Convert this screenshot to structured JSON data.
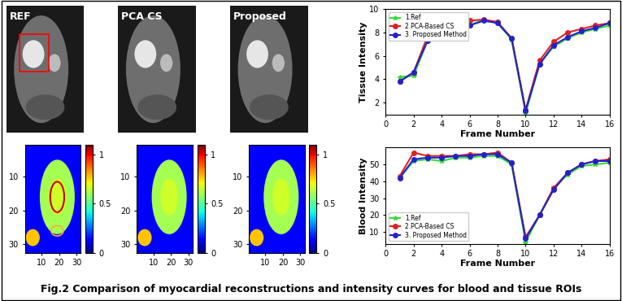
{
  "images": [
    {
      "label": "REF"
    },
    {
      "label": "PCA CS"
    },
    {
      "label": "Proposed"
    }
  ],
  "maps": {
    "xlim": [
      0.5,
      32.5
    ],
    "ylim": [
      32.5,
      0.5
    ],
    "xticks": [
      10,
      20,
      30
    ],
    "yticks": [
      10,
      20,
      30
    ],
    "colorbar_range": [
      0,
      1.1
    ],
    "colorbar_ticks": [
      0,
      0.5,
      1
    ]
  },
  "chart_data": [
    {
      "type": "line",
      "x_label": "Frame Number",
      "y_label": "Tissue Intensity",
      "xlim": [
        0,
        16
      ],
      "xticks": [
        0,
        2,
        4,
        6,
        8,
        10,
        12,
        14,
        16
      ],
      "ylim": [
        1,
        10
      ],
      "yticks": [
        2,
        4,
        6,
        8,
        10
      ],
      "x": [
        1,
        2,
        3,
        4,
        5,
        6,
        7,
        8,
        9,
        10,
        11,
        12,
        13,
        14,
        15,
        16
      ],
      "legend": "upper left",
      "series": [
        {
          "name": "1.Ref",
          "color": "#33dd33",
          "marker": "star",
          "values": [
            4.2,
            4.3,
            7.3,
            7.8,
            8.3,
            8.6,
            9.1,
            8.8,
            7.4,
            1.1,
            5.3,
            6.8,
            7.5,
            8.0,
            8.3,
            8.6
          ]
        },
        {
          "name": "2.PCA-Based CS",
          "color": "#dd2222",
          "marker": "dot",
          "values": [
            3.8,
            4.6,
            7.7,
            8.3,
            8.8,
            9.0,
            9.1,
            8.9,
            7.5,
            1.4,
            5.6,
            7.2,
            8.0,
            8.3,
            8.6,
            8.8
          ]
        },
        {
          "name": "3. Proposed Method",
          "color": "#2222cc",
          "marker": "dot",
          "values": [
            3.8,
            4.6,
            7.3,
            7.8,
            8.2,
            8.6,
            9.0,
            8.8,
            7.5,
            1.3,
            5.3,
            6.9,
            7.6,
            8.1,
            8.4,
            8.8
          ]
        }
      ]
    },
    {
      "type": "line",
      "x_label": "Frame Number",
      "y_label": "Blood Intensity",
      "xlim": [
        0,
        16
      ],
      "xticks": [
        0,
        2,
        4,
        6,
        8,
        10,
        12,
        14,
        16
      ],
      "ylim": [
        3,
        60
      ],
      "yticks": [
        10,
        20,
        30,
        40,
        50
      ],
      "x": [
        1,
        2,
        3,
        4,
        5,
        6,
        7,
        8,
        9,
        10,
        11,
        12,
        13,
        14,
        15,
        16
      ],
      "legend": "lower left",
      "series": [
        {
          "name": "1.Ref",
          "color": "#33dd33",
          "marker": "star",
          "values": [
            42,
            52,
            53,
            52,
            54,
            54,
            55,
            55,
            50,
            4,
            20,
            36,
            44,
            49,
            50,
            51
          ]
        },
        {
          "name": "2.PCA-Based CS",
          "color": "#dd2222",
          "marker": "dot",
          "values": [
            43,
            57,
            55,
            55,
            55,
            56,
            56,
            57,
            51,
            7,
            20,
            36,
            45,
            50,
            52,
            53
          ]
        },
        {
          "name": "3. Proposed Method",
          "color": "#2222cc",
          "marker": "dot",
          "values": [
            42,
            53,
            54,
            54,
            55,
            55,
            56,
            56,
            51,
            6,
            20,
            35,
            45,
            50,
            52,
            52
          ]
        }
      ]
    }
  ],
  "caption": "Fig.2 Comparison of myocardial reconstructions and intensity curves for blood and tissue ROIs"
}
